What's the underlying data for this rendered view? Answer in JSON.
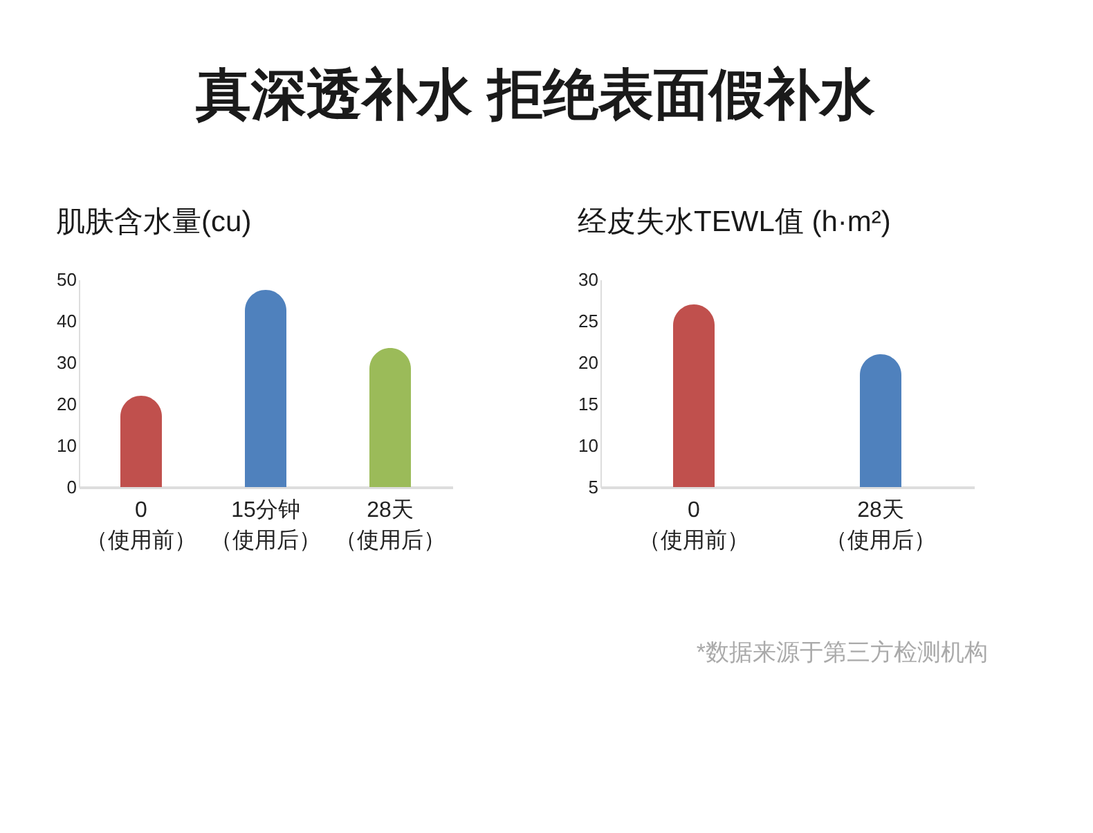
{
  "chart_data": [
    {
      "type": "other",
      "title": "真深透补水 拒绝表面假补水"
    },
    {
      "type": "bar",
      "title": "肌肤含水量(cu)",
      "categories": [
        "0（使用前）",
        "15分钟（使用后）",
        "28天（使用后）"
      ],
      "values": [
        22,
        47.5,
        33.5
      ],
      "colors": [
        "#c0504d",
        "#4f81bd",
        "#9bbb59"
      ],
      "ylim": [
        0,
        50
      ],
      "yticks": [
        0,
        10,
        20,
        30,
        40,
        50
      ],
      "grid": false
    },
    {
      "type": "bar",
      "title": "经皮失水TEWL值 (h·m²)",
      "categories": [
        "0（使用前）",
        "28天（使用后）"
      ],
      "values": [
        27,
        21
      ],
      "colors": [
        "#c0504d",
        "#4f81bd"
      ],
      "ylim": [
        5,
        30
      ],
      "yticks": [
        5,
        10,
        15,
        20,
        25,
        30
      ],
      "grid": false,
      "annotations": [
        "*数据来源于第三方检测机构"
      ]
    }
  ]
}
